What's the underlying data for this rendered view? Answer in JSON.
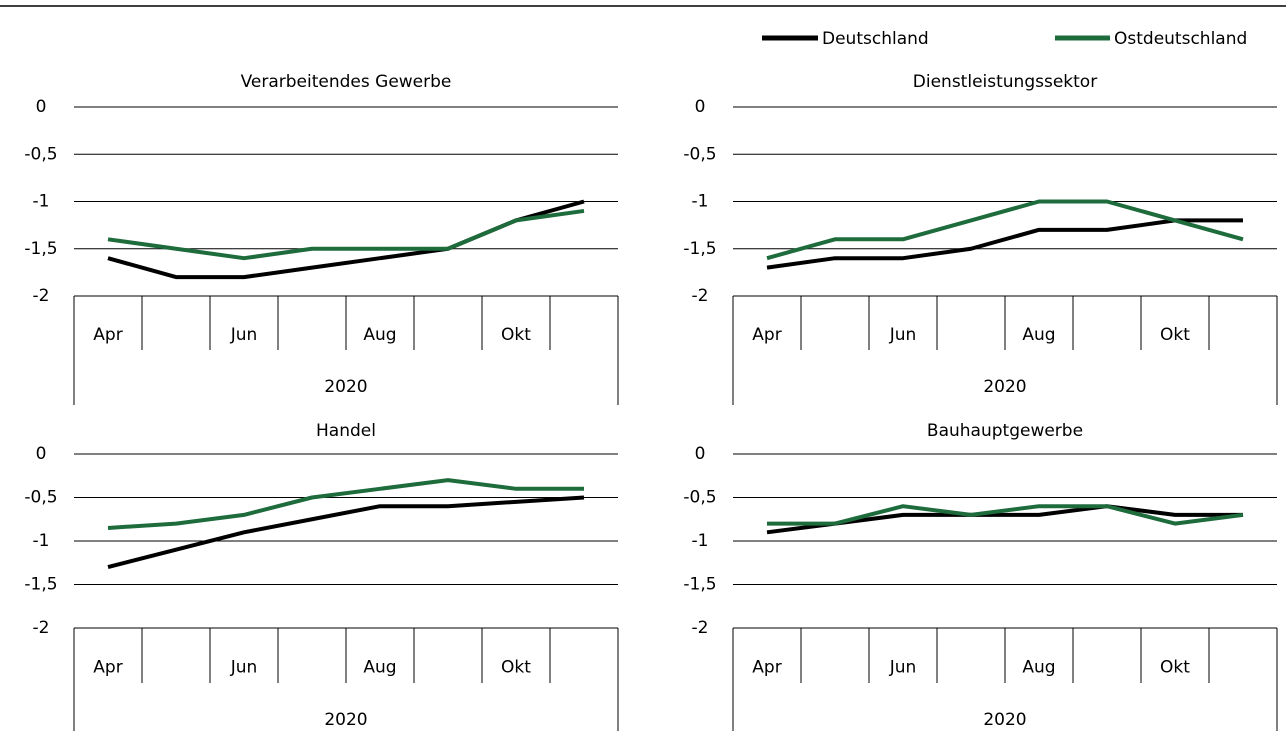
{
  "chart_data": [
    {
      "type": "line",
      "title": "Verarbeitendes Gewerbe",
      "categories": [
        "Apr",
        null,
        "Jun",
        null,
        "Aug",
        null,
        "Okt",
        null
      ],
      "category_group": "2020",
      "series": [
        {
          "name": "Deutschland",
          "color": "#000000",
          "values": [
            -1.6,
            -1.8,
            -1.8,
            -1.7,
            -1.6,
            -1.5,
            -1.2,
            -1.0
          ]
        },
        {
          "name": "Ostdeutschland",
          "color": "#1e6b3c",
          "values": [
            -1.4,
            -1.5,
            -1.6,
            -1.5,
            -1.5,
            -1.5,
            -1.2,
            -1.1
          ]
        }
      ],
      "ylim": [
        -2,
        0
      ],
      "yticks": [
        0,
        {
          "value": -0.5,
          "label": "-0,5"
        },
        -1,
        {
          "value": -1.5,
          "label": "-1,5"
        },
        -2
      ],
      "grid": true
    },
    {
      "type": "line",
      "title": "Dienstleistungssektor",
      "categories": [
        "Apr",
        null,
        "Jun",
        null,
        "Aug",
        null,
        "Okt",
        null
      ],
      "category_group": "2020",
      "series": [
        {
          "name": "Deutschland",
          "color": "#000000",
          "values": [
            -1.7,
            -1.6,
            -1.6,
            -1.5,
            -1.3,
            -1.3,
            -1.2,
            -1.2
          ]
        },
        {
          "name": "Ostdeutschland",
          "color": "#1e6b3c",
          "values": [
            -1.6,
            -1.4,
            -1.4,
            -1.2,
            -1.0,
            -1.0,
            -1.2,
            -1.4
          ]
        }
      ],
      "ylim": [
        -2,
        0
      ],
      "yticks": [
        0,
        {
          "value": -0.5,
          "label": "-0,5"
        },
        -1,
        {
          "value": -1.5,
          "label": "-1,5"
        },
        -2
      ],
      "grid": true
    },
    {
      "type": "line",
      "title": "Handel",
      "categories": [
        "Apr",
        null,
        "Jun",
        null,
        "Aug",
        null,
        "Okt",
        null
      ],
      "category_group": "2020",
      "series": [
        {
          "name": "Deutschland",
          "color": "#000000",
          "values": [
            -1.3,
            -1.1,
            -0.9,
            -0.75,
            -0.6,
            -0.6,
            -0.55,
            -0.5
          ]
        },
        {
          "name": "Ostdeutschland",
          "color": "#1e6b3c",
          "values": [
            -0.85,
            -0.8,
            -0.7,
            -0.5,
            -0.4,
            -0.3,
            -0.4,
            -0.4
          ]
        }
      ],
      "ylim": [
        -2,
        0
      ],
      "yticks": [
        0,
        {
          "value": -0.5,
          "label": "-0,5"
        },
        -1,
        {
          "value": -1.5,
          "label": "-1,5"
        },
        -2
      ],
      "grid": true
    },
    {
      "type": "line",
      "title": "Bauhauptgewerbe",
      "categories": [
        "Apr",
        null,
        "Jun",
        null,
        "Aug",
        null,
        "Okt",
        null
      ],
      "category_group": "2020",
      "series": [
        {
          "name": "Deutschland",
          "color": "#000000",
          "values": [
            -0.9,
            -0.8,
            -0.7,
            -0.7,
            -0.7,
            -0.6,
            -0.7,
            -0.7
          ]
        },
        {
          "name": "Ostdeutschland",
          "color": "#1e6b3c",
          "values": [
            -0.8,
            -0.8,
            -0.6,
            -0.7,
            -0.6,
            -0.6,
            -0.8,
            -0.7
          ]
        }
      ],
      "ylim": [
        -2,
        0
      ],
      "yticks": [
        0,
        {
          "value": -0.5,
          "label": "-0,5"
        },
        -1,
        {
          "value": -1.5,
          "label": "-1,5"
        },
        -2
      ],
      "grid": true
    }
  ]
}
